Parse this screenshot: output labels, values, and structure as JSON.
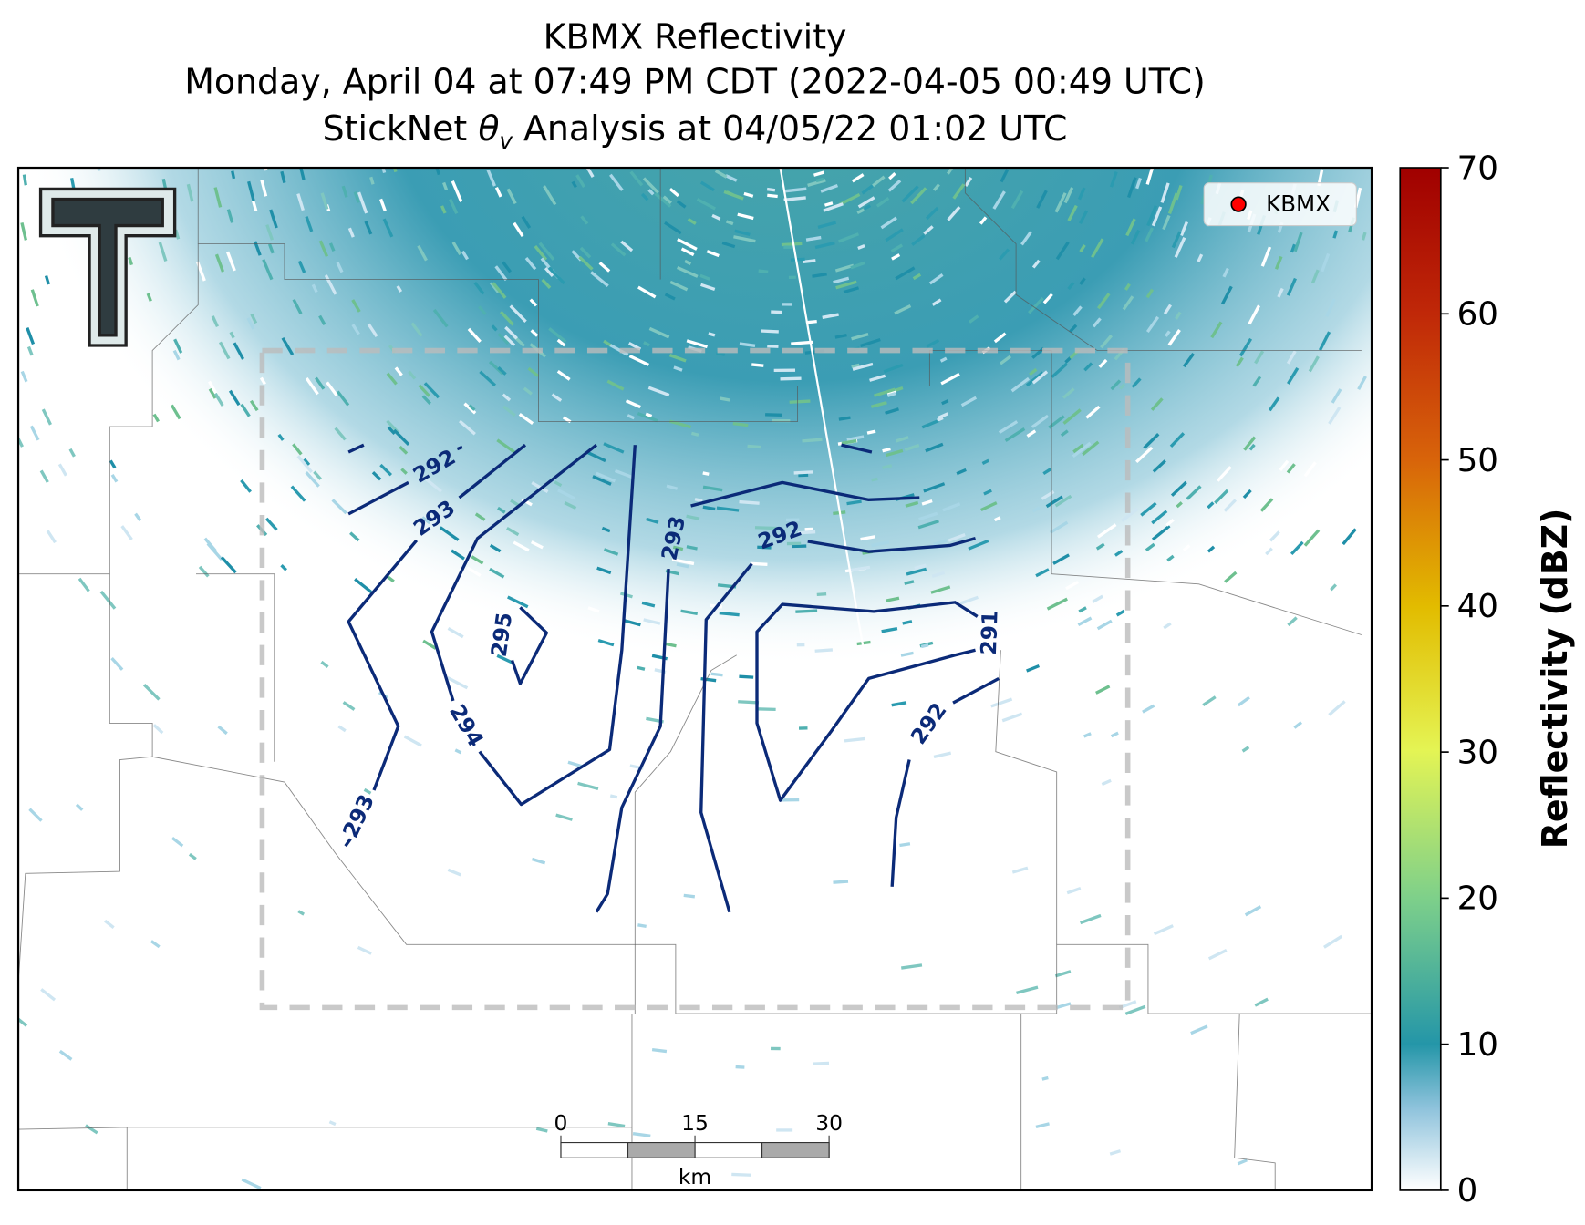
{
  "header": {
    "title": "KBMX Reflectivity",
    "subtitle": "Monday, April 04 at 07:49 PM CDT (2022-04-05 00:49 UTC)",
    "analysis": {
      "prefix": "StickNet",
      "symbol": "θ",
      "subscript": "v",
      "suffix": "Analysis at 04/05/22 01:02 UTC"
    }
  },
  "legend": {
    "label": "KBMX",
    "color": "#ff0000"
  },
  "colorbar": {
    "label": "Reflectivity (dBZ)",
    "lim": [
      0,
      70
    ],
    "ticks": [
      0,
      10,
      20,
      30,
      40,
      50,
      60,
      70
    ]
  },
  "contour_labels": [
    292,
    293,
    295,
    293,
    292,
    291,
    294,
    293,
    292
  ],
  "scale_bar": {
    "ticks": [
      0,
      15,
      30
    ],
    "unit": "km"
  }
}
